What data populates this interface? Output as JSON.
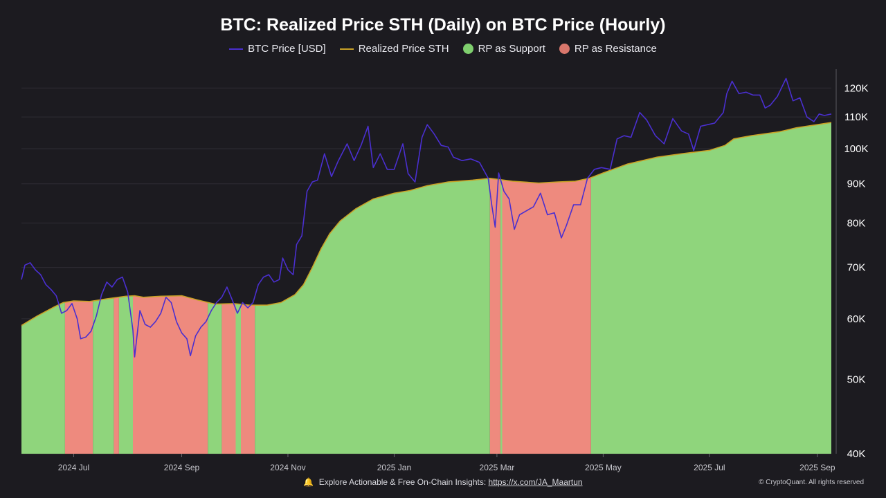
{
  "header": {
    "title": "BTC: Realized Price STH (Daily) on BTC Price (Hourly)"
  },
  "legend": {
    "btc_price": "BTC Price [USD]",
    "realized_price": "Realized Price STH",
    "support": "RP as Support",
    "resistance": "RP as Resistance"
  },
  "footer": {
    "prefix": "Explore Actionable & Free On-Chain Insights:",
    "link": "https://x.com/JA_Maartun",
    "credit": "© CryptoQuant. All rights reserved"
  },
  "colors": {
    "background": "#1c1b20",
    "btc_price": "#4a2fd0",
    "realized_price": "#c9a227",
    "support": "#8fd57c",
    "resistance": "#ee8a7e",
    "grid": "#2e2d34"
  },
  "icons": {
    "footer_icon": "bell-icon"
  },
  "chart_data": {
    "type": "area",
    "title": "BTC: Realized Price STH (Daily) on BTC Price (Hourly)",
    "y_scale": "log",
    "ylim": [
      40000,
      127000
    ],
    "y_ticks": [
      {
        "value": 120000,
        "label": "120K"
      },
      {
        "value": 110000,
        "label": "110K"
      },
      {
        "value": 100000,
        "label": "100K"
      },
      {
        "value": 90000,
        "label": "90K"
      },
      {
        "value": 80000,
        "label": "80K"
      },
      {
        "value": 70000,
        "label": "70K"
      },
      {
        "value": 60000,
        "label": "60K"
      },
      {
        "value": 50000,
        "label": "50K"
      },
      {
        "value": 40000,
        "label": "40K"
      }
    ],
    "x_range": [
      "2024-06-01",
      "2025-09-09"
    ],
    "x_ticks": [
      {
        "date": "2024-07-01",
        "label": "2024 Jul"
      },
      {
        "date": "2024-09-01",
        "label": "2024 Sep"
      },
      {
        "date": "2024-11-01",
        "label": "2024 Nov"
      },
      {
        "date": "2025-01-01",
        "label": "2025 Jan"
      },
      {
        "date": "2025-03-01",
        "label": "2025 Mar"
      },
      {
        "date": "2025-05-01",
        "label": "2025 May"
      },
      {
        "date": "2025-07-01",
        "label": "2025 Jul"
      },
      {
        "date": "2025-09-01",
        "label": "2025 Sep"
      }
    ],
    "series": [
      {
        "name": "BTC Price [USD]",
        "points": [
          [
            "2024-06-01",
            67500
          ],
          [
            "2024-06-03",
            70500
          ],
          [
            "2024-06-06",
            71000
          ],
          [
            "2024-06-09",
            69500
          ],
          [
            "2024-06-12",
            68500
          ],
          [
            "2024-06-15",
            66500
          ],
          [
            "2024-06-18",
            65500
          ],
          [
            "2024-06-21",
            64300
          ],
          [
            "2024-06-24",
            61000
          ],
          [
            "2024-06-27",
            61500
          ],
          [
            "2024-06-30",
            62800
          ],
          [
            "2024-07-03",
            60000
          ],
          [
            "2024-07-05",
            56500
          ],
          [
            "2024-07-08",
            56800
          ],
          [
            "2024-07-11",
            57800
          ],
          [
            "2024-07-14",
            60500
          ],
          [
            "2024-07-17",
            64500
          ],
          [
            "2024-07-20",
            67000
          ],
          [
            "2024-07-23",
            66000
          ],
          [
            "2024-07-26",
            67500
          ],
          [
            "2024-07-29",
            68000
          ],
          [
            "2024-08-01",
            65000
          ],
          [
            "2024-08-04",
            58000
          ],
          [
            "2024-08-05",
            53500
          ],
          [
            "2024-08-08",
            61500
          ],
          [
            "2024-08-11",
            59000
          ],
          [
            "2024-08-14",
            58500
          ],
          [
            "2024-08-17",
            59500
          ],
          [
            "2024-08-20",
            61000
          ],
          [
            "2024-08-23",
            64000
          ],
          [
            "2024-08-26",
            63000
          ],
          [
            "2024-08-29",
            59500
          ],
          [
            "2024-09-01",
            57500
          ],
          [
            "2024-09-04",
            56500
          ],
          [
            "2024-09-06",
            53700
          ],
          [
            "2024-09-09",
            57000
          ],
          [
            "2024-09-12",
            58500
          ],
          [
            "2024-09-15",
            59500
          ],
          [
            "2024-09-18",
            61500
          ],
          [
            "2024-09-21",
            63000
          ],
          [
            "2024-09-24",
            64000
          ],
          [
            "2024-09-27",
            66000
          ],
          [
            "2024-09-30",
            63500
          ],
          [
            "2024-10-03",
            61000
          ],
          [
            "2024-10-06",
            63000
          ],
          [
            "2024-10-09",
            62000
          ],
          [
            "2024-10-12",
            63000
          ],
          [
            "2024-10-15",
            66500
          ],
          [
            "2024-10-18",
            68000
          ],
          [
            "2024-10-21",
            68500
          ],
          [
            "2024-10-24",
            67000
          ],
          [
            "2024-10-27",
            67500
          ],
          [
            "2024-10-29",
            72000
          ],
          [
            "2024-11-01",
            69500
          ],
          [
            "2024-11-04",
            68500
          ],
          [
            "2024-11-06",
            75000
          ],
          [
            "2024-11-09",
            77000
          ],
          [
            "2024-11-12",
            88000
          ],
          [
            "2024-11-15",
            90500
          ],
          [
            "2024-11-18",
            91000
          ],
          [
            "2024-11-22",
            98500
          ],
          [
            "2024-11-26",
            92000
          ],
          [
            "2024-11-30",
            96500
          ],
          [
            "2024-12-05",
            101500
          ],
          [
            "2024-12-09",
            96500
          ],
          [
            "2024-12-13",
            101000
          ],
          [
            "2024-12-17",
            107000
          ],
          [
            "2024-12-20",
            94500
          ],
          [
            "2024-12-24",
            98500
          ],
          [
            "2024-12-28",
            94000
          ],
          [
            "2025-01-01",
            94000
          ],
          [
            "2025-01-06",
            101500
          ],
          [
            "2025-01-09",
            92800
          ],
          [
            "2025-01-13",
            90500
          ],
          [
            "2025-01-17",
            103500
          ],
          [
            "2025-01-20",
            107500
          ],
          [
            "2025-01-24",
            104500
          ],
          [
            "2025-01-28",
            101000
          ],
          [
            "2025-02-01",
            100500
          ],
          [
            "2025-02-04",
            97500
          ],
          [
            "2025-02-09",
            96500
          ],
          [
            "2025-02-14",
            97000
          ],
          [
            "2025-02-19",
            96000
          ],
          [
            "2025-02-24",
            91500
          ],
          [
            "2025-02-26",
            84500
          ],
          [
            "2025-02-28",
            79000
          ],
          [
            "2025-03-02",
            93000
          ],
          [
            "2025-03-05",
            88000
          ],
          [
            "2025-03-08",
            86000
          ],
          [
            "2025-03-11",
            78500
          ],
          [
            "2025-03-14",
            82000
          ],
          [
            "2025-03-18",
            83000
          ],
          [
            "2025-03-22",
            84000
          ],
          [
            "2025-03-26",
            87500
          ],
          [
            "2025-03-30",
            82000
          ],
          [
            "2025-04-03",
            82500
          ],
          [
            "2025-04-07",
            76500
          ],
          [
            "2025-04-10",
            79500
          ],
          [
            "2025-04-14",
            84500
          ],
          [
            "2025-04-18",
            84500
          ],
          [
            "2025-04-22",
            91500
          ],
          [
            "2025-04-26",
            94000
          ],
          [
            "2025-04-30",
            94500
          ],
          [
            "2025-05-05",
            94000
          ],
          [
            "2025-05-09",
            103000
          ],
          [
            "2025-05-13",
            104000
          ],
          [
            "2025-05-17",
            103500
          ],
          [
            "2025-05-22",
            111500
          ],
          [
            "2025-05-26",
            109000
          ],
          [
            "2025-05-31",
            104000
          ],
          [
            "2025-06-05",
            101500
          ],
          [
            "2025-06-10",
            109500
          ],
          [
            "2025-06-15",
            105500
          ],
          [
            "2025-06-19",
            104500
          ],
          [
            "2025-06-22",
            99500
          ],
          [
            "2025-06-26",
            107000
          ],
          [
            "2025-06-30",
            107500
          ],
          [
            "2025-07-04",
            108000
          ],
          [
            "2025-07-09",
            111500
          ],
          [
            "2025-07-11",
            118000
          ],
          [
            "2025-07-14",
            122500
          ],
          [
            "2025-07-18",
            118000
          ],
          [
            "2025-07-22",
            118500
          ],
          [
            "2025-07-26",
            117500
          ],
          [
            "2025-07-30",
            117500
          ],
          [
            "2025-08-02",
            113000
          ],
          [
            "2025-08-05",
            114000
          ],
          [
            "2025-08-09",
            117000
          ],
          [
            "2025-08-14",
            123500
          ],
          [
            "2025-08-18",
            115500
          ],
          [
            "2025-08-22",
            116500
          ],
          [
            "2025-08-26",
            110000
          ],
          [
            "2025-08-30",
            108500
          ],
          [
            "2025-09-02",
            111000
          ],
          [
            "2025-09-05",
            110500
          ],
          [
            "2025-09-09",
            111000
          ]
        ]
      },
      {
        "name": "Realized Price STH",
        "points": [
          [
            "2024-06-01",
            58800
          ],
          [
            "2024-06-10",
            60500
          ],
          [
            "2024-06-20",
            62200
          ],
          [
            "2024-06-25",
            63000
          ],
          [
            "2024-07-01",
            63300
          ],
          [
            "2024-07-10",
            63200
          ],
          [
            "2024-07-20",
            63700
          ],
          [
            "2024-07-31",
            64200
          ],
          [
            "2024-08-05",
            64300
          ],
          [
            "2024-08-10",
            64000
          ],
          [
            "2024-08-20",
            64200
          ],
          [
            "2024-09-01",
            64300
          ],
          [
            "2024-09-10",
            63500
          ],
          [
            "2024-09-20",
            62700
          ],
          [
            "2024-10-01",
            62800
          ],
          [
            "2024-10-10",
            62500
          ],
          [
            "2024-10-20",
            62500
          ],
          [
            "2024-10-28",
            63000
          ],
          [
            "2024-11-05",
            64500
          ],
          [
            "2024-11-10",
            66500
          ],
          [
            "2024-11-15",
            70000
          ],
          [
            "2024-11-20",
            74000
          ],
          [
            "2024-11-25",
            77500
          ],
          [
            "2024-12-01",
            80500
          ],
          [
            "2024-12-10",
            83500
          ],
          [
            "2024-12-20",
            86000
          ],
          [
            "2025-01-01",
            87500
          ],
          [
            "2025-01-10",
            88200
          ],
          [
            "2025-01-20",
            89500
          ],
          [
            "2025-02-01",
            90500
          ],
          [
            "2025-02-15",
            91000
          ],
          [
            "2025-02-25",
            91500
          ],
          [
            "2025-03-10",
            90700
          ],
          [
            "2025-03-25",
            90200
          ],
          [
            "2025-04-05",
            90500
          ],
          [
            "2025-04-15",
            90700
          ],
          [
            "2025-04-23",
            91500
          ],
          [
            "2025-05-01",
            93000
          ],
          [
            "2025-05-15",
            95500
          ],
          [
            "2025-06-01",
            97500
          ],
          [
            "2025-06-15",
            98500
          ],
          [
            "2025-07-01",
            99500
          ],
          [
            "2025-07-10",
            101000
          ],
          [
            "2025-07-15",
            103000
          ],
          [
            "2025-07-25",
            104000
          ],
          [
            "2025-08-10",
            105200
          ],
          [
            "2025-08-20",
            106500
          ],
          [
            "2025-09-01",
            107500
          ],
          [
            "2025-09-09",
            108200
          ]
        ]
      }
    ],
    "regimes": [
      {
        "start": "2024-06-01",
        "end": "2024-06-26",
        "type": "RP as Support"
      },
      {
        "start": "2024-06-26",
        "end": "2024-07-12",
        "type": "RP as Resistance"
      },
      {
        "start": "2024-07-12",
        "end": "2024-07-24",
        "type": "RP as Support"
      },
      {
        "start": "2024-07-24",
        "end": "2024-07-27",
        "type": "RP as Resistance"
      },
      {
        "start": "2024-07-27",
        "end": "2024-08-04",
        "type": "RP as Support"
      },
      {
        "start": "2024-08-04",
        "end": "2024-09-16",
        "type": "RP as Resistance"
      },
      {
        "start": "2024-09-16",
        "end": "2024-09-24",
        "type": "RP as Support"
      },
      {
        "start": "2024-09-24",
        "end": "2024-10-02",
        "type": "RP as Resistance"
      },
      {
        "start": "2024-10-02",
        "end": "2024-10-05",
        "type": "RP as Support"
      },
      {
        "start": "2024-10-05",
        "end": "2024-10-13",
        "type": "RP as Resistance"
      },
      {
        "start": "2024-10-13",
        "end": "2025-02-25",
        "type": "RP as Support"
      },
      {
        "start": "2025-02-25",
        "end": "2025-03-03",
        "type": "RP as Resistance"
      },
      {
        "start": "2025-03-03",
        "end": "2025-03-04",
        "type": "RP as Support"
      },
      {
        "start": "2025-03-04",
        "end": "2025-04-24",
        "type": "RP as Resistance"
      },
      {
        "start": "2025-04-24",
        "end": "2025-09-09",
        "type": "RP as Support"
      }
    ]
  }
}
